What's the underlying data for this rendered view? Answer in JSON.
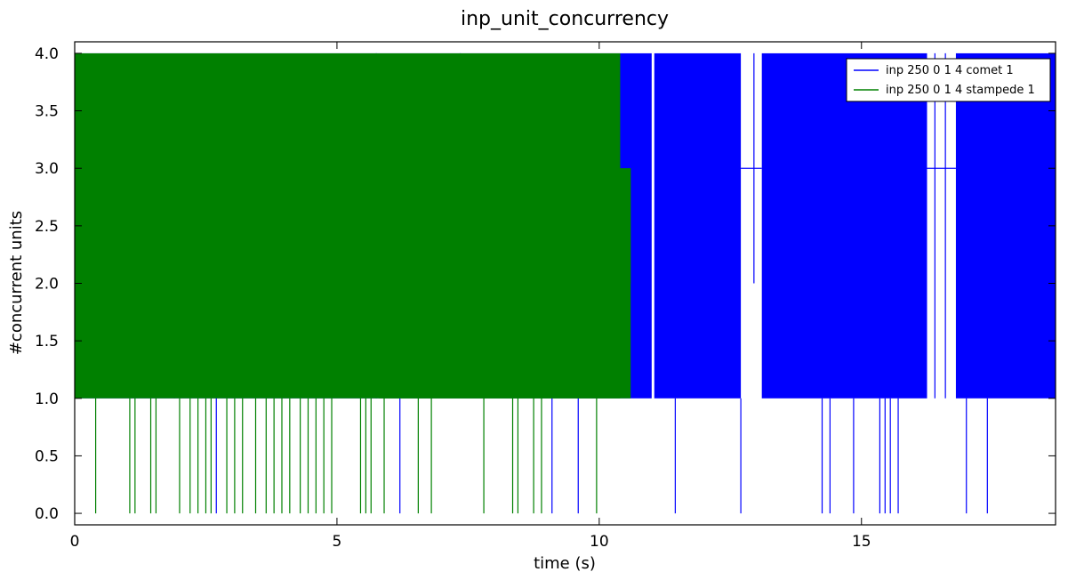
{
  "chart_data": {
    "type": "line",
    "title": "inp_unit_concurrency",
    "xlabel": "time (s)",
    "ylabel": "#concurrent units",
    "xlim": [
      0,
      18.7
    ],
    "ylim": [
      -0.1,
      4.1
    ],
    "x_ticks": [
      0,
      5,
      10,
      15
    ],
    "x_tick_labels": [
      "0",
      "5",
      "10",
      "15"
    ],
    "y_ticks": [
      0.0,
      0.5,
      1.0,
      1.5,
      2.0,
      2.5,
      3.0,
      3.5,
      4.0
    ],
    "y_tick_labels": [
      "0.0",
      "0.5",
      "1.0",
      "1.5",
      "2.0",
      "2.5",
      "3.0",
      "3.5",
      "4.0"
    ],
    "grid": false,
    "legend_position": "top-right",
    "series": [
      {
        "name": "inp 250 0 1 4 comet 1",
        "color": "#0000ff",
        "bands": [
          {
            "x0": 0.0,
            "x1": 10.4,
            "y0": 1.0,
            "y1": 4.0
          },
          {
            "x0": 10.4,
            "x1": 11.0,
            "y0": 1.0,
            "y1": 4.0
          },
          {
            "x0": 11.05,
            "x1": 12.7,
            "y0": 1.0,
            "y1": 4.0
          },
          {
            "x0": 13.1,
            "x1": 16.25,
            "y0": 1.0,
            "y1": 4.0
          },
          {
            "x0": 16.8,
            "x1": 18.7,
            "y0": 1.0,
            "y1": 4.0
          }
        ],
        "baseline_segments": [
          {
            "x0": 12.7,
            "x1": 13.1,
            "y": 3.0
          },
          {
            "x0": 16.25,
            "x1": 16.8,
            "y": 3.0
          }
        ],
        "spikes": [
          {
            "x": 1.9,
            "y0": 1.0,
            "y1": 2.0
          },
          {
            "x": 2.7,
            "y0": 0.0,
            "y1": 1.0
          },
          {
            "x": 5.75,
            "y0": 1.0,
            "y1": 4.0
          },
          {
            "x": 6.2,
            "y0": 0.0,
            "y1": 1.0
          },
          {
            "x": 7.35,
            "y0": 3.0,
            "y1": 4.0
          },
          {
            "x": 9.1,
            "y0": 0.0,
            "y1": 1.0
          },
          {
            "x": 9.6,
            "y0": 0.0,
            "y1": 1.0
          },
          {
            "x": 11.45,
            "y0": 0.0,
            "y1": 1.0
          },
          {
            "x": 12.7,
            "y0": 0.0,
            "y1": 1.0
          },
          {
            "x": 12.95,
            "y0": 2.0,
            "y1": 4.0
          },
          {
            "x": 14.25,
            "y0": 0.0,
            "y1": 1.0
          },
          {
            "x": 14.4,
            "y0": 0.0,
            "y1": 1.0
          },
          {
            "x": 14.85,
            "y0": 0.0,
            "y1": 1.0
          },
          {
            "x": 15.35,
            "y0": 0.0,
            "y1": 1.0
          },
          {
            "x": 15.45,
            "y0": 0.0,
            "y1": 1.0
          },
          {
            "x": 15.55,
            "y0": 0.0,
            "y1": 1.0
          },
          {
            "x": 15.7,
            "y0": 0.0,
            "y1": 1.0
          },
          {
            "x": 16.4,
            "y0": 1.0,
            "y1": 4.0
          },
          {
            "x": 16.6,
            "y0": 1.0,
            "y1": 4.0
          },
          {
            "x": 17.0,
            "y0": 0.0,
            "y1": 1.0
          },
          {
            "x": 17.4,
            "y0": 0.0,
            "y1": 1.0
          }
        ]
      },
      {
        "name": "inp 250 0 1 4 stampede 1",
        "color": "#008000",
        "bands": [
          {
            "x0": 0.0,
            "x1": 10.4,
            "y0": 1.0,
            "y1": 4.0
          },
          {
            "x0": 5.8,
            "x1": 10.6,
            "y0": 1.0,
            "y1": 3.0
          },
          {
            "x0": 10.4,
            "x1": 10.6,
            "y0": 2.0,
            "y1": 3.0
          }
        ],
        "spikes": [
          {
            "x": 0.4,
            "y0": 0.0,
            "y1": 1.0
          },
          {
            "x": 1.05,
            "y0": 0.0,
            "y1": 1.0
          },
          {
            "x": 1.15,
            "y0": 0.0,
            "y1": 1.0
          },
          {
            "x": 1.45,
            "y0": 0.0,
            "y1": 1.0
          },
          {
            "x": 1.55,
            "y0": 0.0,
            "y1": 1.0
          },
          {
            "x": 2.0,
            "y0": 0.0,
            "y1": 1.0
          },
          {
            "x": 2.2,
            "y0": 0.0,
            "y1": 1.0
          },
          {
            "x": 2.35,
            "y0": 0.0,
            "y1": 1.0
          },
          {
            "x": 2.5,
            "y0": 0.0,
            "y1": 1.0
          },
          {
            "x": 2.6,
            "y0": 0.0,
            "y1": 1.0
          },
          {
            "x": 2.9,
            "y0": 0.0,
            "y1": 1.0
          },
          {
            "x": 3.05,
            "y0": 0.0,
            "y1": 1.0
          },
          {
            "x": 3.2,
            "y0": 0.0,
            "y1": 1.0
          },
          {
            "x": 3.45,
            "y0": 0.0,
            "y1": 1.0
          },
          {
            "x": 3.65,
            "y0": 0.0,
            "y1": 1.0
          },
          {
            "x": 3.8,
            "y0": 0.0,
            "y1": 1.0
          },
          {
            "x": 3.95,
            "y0": 0.0,
            "y1": 1.0
          },
          {
            "x": 4.1,
            "y0": 0.0,
            "y1": 1.0
          },
          {
            "x": 4.3,
            "y0": 0.0,
            "y1": 1.0
          },
          {
            "x": 4.45,
            "y0": 0.0,
            "y1": 1.0
          },
          {
            "x": 4.6,
            "y0": 0.0,
            "y1": 1.0
          },
          {
            "x": 4.75,
            "y0": 0.0,
            "y1": 1.0
          },
          {
            "x": 4.9,
            "y0": 0.0,
            "y1": 1.0
          },
          {
            "x": 5.45,
            "y0": 0.0,
            "y1": 1.0
          },
          {
            "x": 5.55,
            "y0": 0.0,
            "y1": 1.0
          },
          {
            "x": 5.65,
            "y0": 0.0,
            "y1": 1.0
          },
          {
            "x": 5.9,
            "y0": 0.0,
            "y1": 1.0
          },
          {
            "x": 6.55,
            "y0": 0.0,
            "y1": 1.0
          },
          {
            "x": 6.8,
            "y0": 0.0,
            "y1": 1.0
          },
          {
            "x": 7.8,
            "y0": 0.0,
            "y1": 1.0
          },
          {
            "x": 8.35,
            "y0": 0.0,
            "y1": 1.0
          },
          {
            "x": 8.45,
            "y0": 0.0,
            "y1": 1.0
          },
          {
            "x": 8.75,
            "y0": 0.0,
            "y1": 1.0
          },
          {
            "x": 8.9,
            "y0": 0.0,
            "y1": 1.0
          },
          {
            "x": 9.95,
            "y0": 0.0,
            "y1": 1.0
          }
        ]
      }
    ]
  }
}
